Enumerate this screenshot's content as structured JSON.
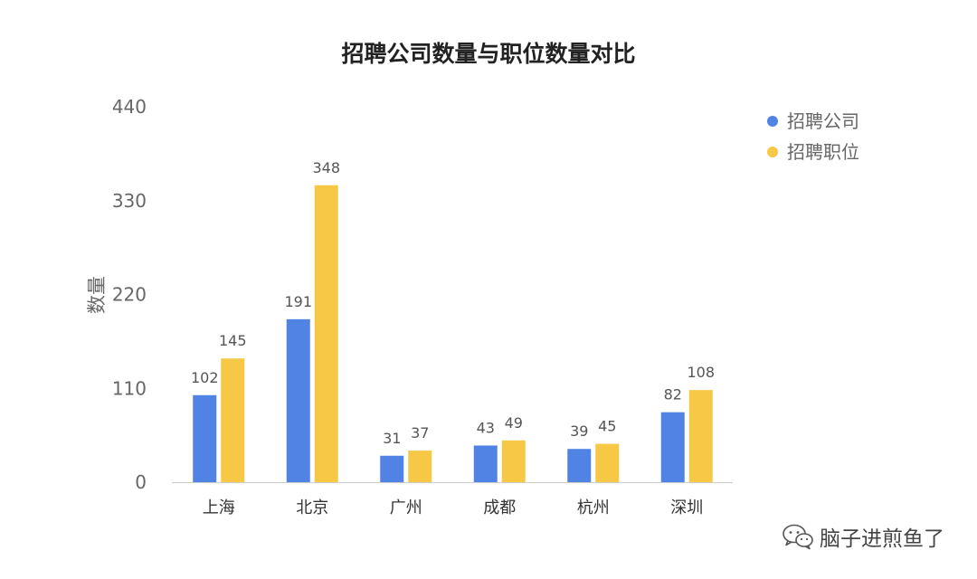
{
  "chart_data": {
    "type": "bar",
    "title": "招聘公司数量与职位数量对比",
    "xlabel": "",
    "ylabel": "数量",
    "ylim": [
      0,
      440
    ],
    "yticks": [
      0,
      110,
      220,
      330,
      440
    ],
    "grid": false,
    "legend_position": "top-right",
    "categories": [
      "上海",
      "北京",
      "广州",
      "成都",
      "杭州",
      "深圳"
    ],
    "series": [
      {
        "name": "招聘公司",
        "color": "#5183E5",
        "values": [
          102,
          191,
          31,
          43,
          39,
          82
        ]
      },
      {
        "name": "招聘职位",
        "color": "#F6C845",
        "values": [
          145,
          348,
          37,
          49,
          45,
          108
        ]
      }
    ]
  },
  "watermark": {
    "text": "脑子进煎鱼了",
    "icon": "wechat-icon"
  }
}
